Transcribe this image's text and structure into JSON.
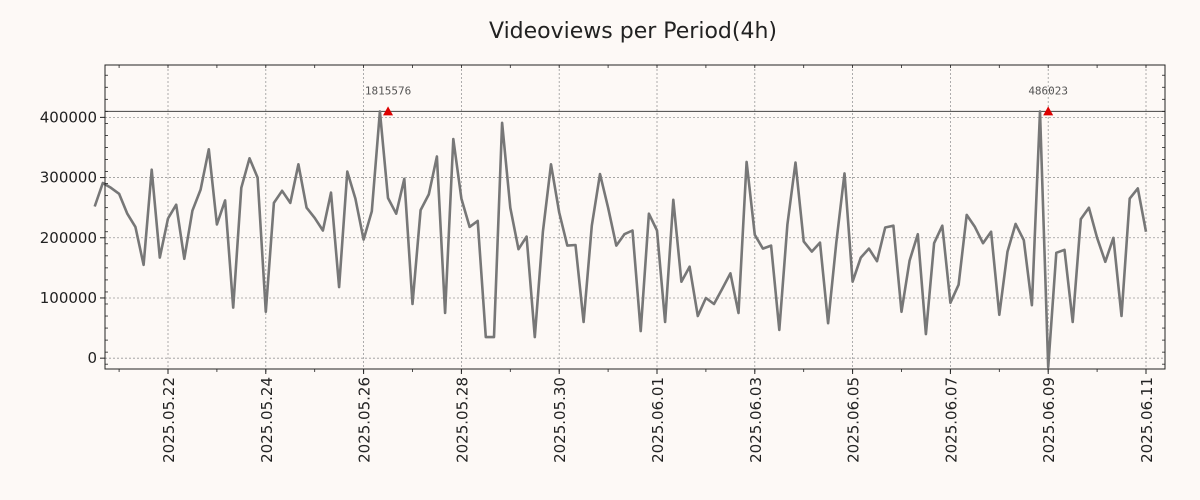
{
  "chart_data": {
    "type": "line",
    "title": "Videoviews per Period(4h)",
    "xlabel": "",
    "ylabel": "",
    "x_tick_labels": [
      "2025.05.22",
      "2025.05.24",
      "2025.05.26",
      "2025.05.28",
      "2025.05.30",
      "2025.06.01",
      "2025.06.03",
      "2025.06.05",
      "2025.06.07",
      "2025.06.09",
      "2025.06.11"
    ],
    "y_tick_labels": [
      "0",
      "100000",
      "200000",
      "300000",
      "400000"
    ],
    "ylim": [
      -18000,
      487000
    ],
    "grid": true,
    "line_color": "#777777",
    "marker_color": "#dd0000",
    "reference_line_value": 410000,
    "peaks": [
      {
        "label": "1815576",
        "date": "2025.05.26 12:00",
        "value": 410000
      },
      {
        "label": "486023",
        "date": "2025.06.09 00:00",
        "value": 410000
      }
    ],
    "series": [
      {
        "start_date": "2025.05.20 12:00",
        "interval_hours": 4,
        "values": [
          252000,
          291000,
          283000,
          273000,
          240000,
          218000,
          155000,
          313000,
          167000,
          232000,
          255000,
          165000,
          245000,
          280000,
          347000,
          222000,
          262000,
          84000,
          283000,
          332000,
          300000,
          77000,
          258000,
          278000,
          258000,
          322000,
          250000,
          233000,
          212000,
          275000,
          118000,
          310000,
          265000,
          197000,
          244000,
          410000,
          266000,
          240000,
          298000,
          90000,
          246000,
          272000,
          335000,
          75000,
          364000,
          265000,
          218000,
          228000,
          35000,
          35000,
          391000,
          250000,
          181000,
          202000,
          35000,
          210000,
          322000,
          242000,
          187000,
          188000,
          60000,
          220000,
          306000,
          250000,
          187000,
          206000,
          212000,
          45000,
          240000,
          212000,
          60000,
          263000,
          127000,
          152000,
          70000,
          100000,
          90000,
          115000,
          141000,
          75000,
          326000,
          205000,
          182000,
          187000,
          47000,
          222000,
          325000,
          194000,
          177000,
          192000,
          58000,
          192000,
          307000,
          127000,
          167000,
          182000,
          161000,
          217000,
          220000,
          77000,
          162000,
          206000,
          40000,
          191000,
          220000,
          92000,
          122000,
          238000,
          218000,
          191000,
          210000,
          72000,
          177000,
          223000,
          196000,
          88000,
          410000,
          -15000,
          175000,
          180000,
          60000,
          231000,
          250000,
          200000,
          160000,
          200000,
          70000,
          265000,
          282000,
          210000
        ]
      }
    ]
  }
}
